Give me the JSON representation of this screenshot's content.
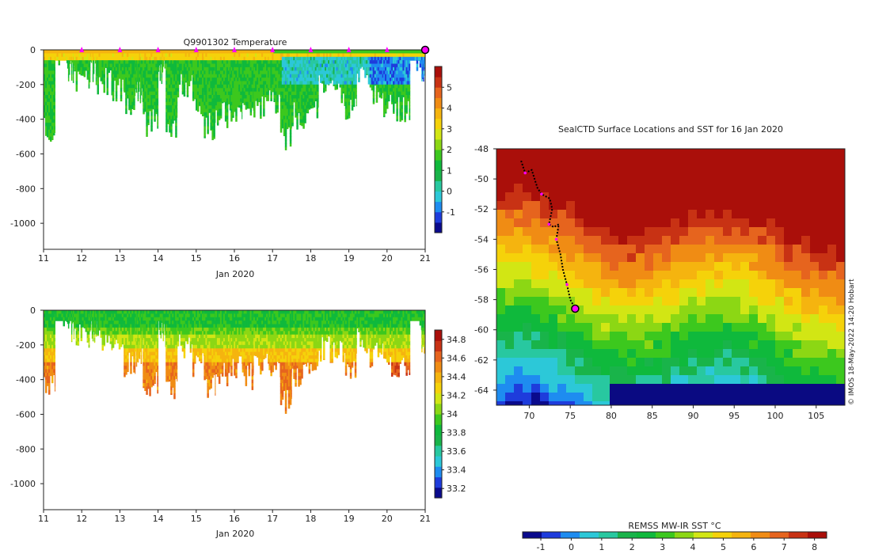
{
  "colors": {
    "jet": [
      "#0a0a8c",
      "#1e3cdc",
      "#1e8cf0",
      "#2cc8d8",
      "#28c8a0",
      "#19b44a",
      "#0fb93c",
      "#3cc81e",
      "#8cd714",
      "#d2e614",
      "#f5d20a",
      "#f5b40f",
      "#f08c14",
      "#e6641e",
      "#c83214",
      "#aa0f0a"
    ],
    "axis": "#222222",
    "marker": "#ff00ff",
    "track": "#000000",
    "land": "#0a0a82"
  },
  "chart_data": [
    {
      "type": "heatmap",
      "title": "Q9901302  Temperature",
      "xlabel": "Jan 2020",
      "xticks": [
        "11",
        "12",
        "13",
        "14",
        "15",
        "16",
        "17",
        "18",
        "19",
        "20",
        "21"
      ],
      "xlim": [
        11,
        21
      ],
      "yticks": [
        "0",
        "-200",
        "-400",
        "-600",
        "-800",
        "-1000"
      ],
      "ylim": [
        -1150,
        0
      ],
      "colorbar": {
        "ticks": [
          "5",
          "4",
          "3",
          "2",
          "1",
          "0",
          "-1"
        ],
        "min": -2,
        "max": 6
      },
      "profile_markers_day": [
        12,
        13,
        14,
        15,
        16,
        17,
        18,
        19,
        20
      ],
      "final_marker_day": 21,
      "dives": [
        {
          "day": 11.0,
          "depth": 530
        },
        {
          "day": 11.3,
          "depth": 100
        },
        {
          "day": 11.6,
          "depth": 210
        },
        {
          "day": 11.8,
          "depth": 240
        },
        {
          "day": 12.2,
          "depth": 210
        },
        {
          "day": 12.4,
          "depth": 260
        },
        {
          "day": 12.8,
          "depth": 300
        },
        {
          "day": 13.1,
          "depth": 400
        },
        {
          "day": 13.4,
          "depth": 330
        },
        {
          "day": 13.6,
          "depth": 500
        },
        {
          "day": 14.0,
          "depth": 210
        },
        {
          "day": 14.2,
          "depth": 540
        },
        {
          "day": 14.5,
          "depth": 280
        },
        {
          "day": 14.9,
          "depth": 400
        },
        {
          "day": 15.2,
          "depth": 520
        },
        {
          "day": 15.5,
          "depth": 460
        },
        {
          "day": 15.9,
          "depth": 420
        },
        {
          "day": 16.2,
          "depth": 460
        },
        {
          "day": 16.5,
          "depth": 400
        },
        {
          "day": 16.9,
          "depth": 390
        },
        {
          "day": 17.2,
          "depth": 600
        },
        {
          "day": 17.5,
          "depth": 460
        },
        {
          "day": 17.9,
          "depth": 400
        },
        {
          "day": 18.2,
          "depth": 300
        },
        {
          "day": 18.5,
          "depth": 330
        },
        {
          "day": 18.9,
          "depth": 400
        },
        {
          "day": 19.2,
          "depth": 250
        },
        {
          "day": 19.5,
          "depth": 330
        },
        {
          "day": 19.9,
          "depth": 390
        },
        {
          "day": 20.2,
          "depth": 430
        },
        {
          "day": 20.6,
          "depth": 120
        },
        {
          "day": 20.9,
          "depth": 250
        }
      ]
    },
    {
      "type": "heatmap",
      "title": "",
      "xlabel": "Jan 2020",
      "xticks": [
        "11",
        "12",
        "13",
        "14",
        "15",
        "16",
        "17",
        "18",
        "19",
        "20",
        "21"
      ],
      "xlim": [
        11,
        21
      ],
      "yticks": [
        "0",
        "-200",
        "-400",
        "-600",
        "-800",
        "-1000"
      ],
      "ylim": [
        -1150,
        0
      ],
      "colorbar": {
        "ticks": [
          "34.8",
          "34.6",
          "34.4",
          "34.2",
          "34",
          "33.8",
          "33.6",
          "33.4",
          "33.2"
        ],
        "min": 33.1,
        "max": 34.9
      }
    },
    {
      "type": "heatmap",
      "title": "SealCTD Surface Locations and SST for 16 Jan 2020",
      "xticks": [
        "70",
        "75",
        "80",
        "85",
        "90",
        "95",
        "100",
        "105"
      ],
      "xlim": [
        66,
        108.5
      ],
      "yticks": [
        "-48",
        "-50",
        "-52",
        "-54",
        "-56",
        "-58",
        "-60",
        "-62",
        "-64"
      ],
      "ylim": [
        -65,
        -48
      ],
      "track": [
        {
          "lon": 69.0,
          "lat": -48.8
        },
        {
          "lon": 69.5,
          "lat": -49.6
        },
        {
          "lon": 70.3,
          "lat": -49.4
        },
        {
          "lon": 71.0,
          "lat": -50.6
        },
        {
          "lon": 71.5,
          "lat": -51.0
        },
        {
          "lon": 72.5,
          "lat": -51.3
        },
        {
          "lon": 72.8,
          "lat": -52.0
        },
        {
          "lon": 72.4,
          "lat": -53.0
        },
        {
          "lon": 73.0,
          "lat": -53.2
        },
        {
          "lon": 73.6,
          "lat": -53.0
        },
        {
          "lon": 73.3,
          "lat": -54.0
        },
        {
          "lon": 73.8,
          "lat": -55.0
        },
        {
          "lon": 74.1,
          "lat": -56.0
        },
        {
          "lon": 74.6,
          "lat": -57.0
        },
        {
          "lon": 75.0,
          "lat": -58.0
        },
        {
          "lon": 75.6,
          "lat": -58.6
        }
      ],
      "end_position": {
        "lon": 75.6,
        "lat": -58.6
      }
    },
    {
      "type": "colorbar",
      "label": "REMSS MW-IR SST °C",
      "ticks": [
        "-1",
        "0",
        "1",
        "2",
        "3",
        "4",
        "5",
        "6",
        "7",
        "8"
      ],
      "min": -1.6,
      "max": 8.4
    }
  ],
  "credit": "© IMOS 18-May-2022 14:20 Hobart"
}
